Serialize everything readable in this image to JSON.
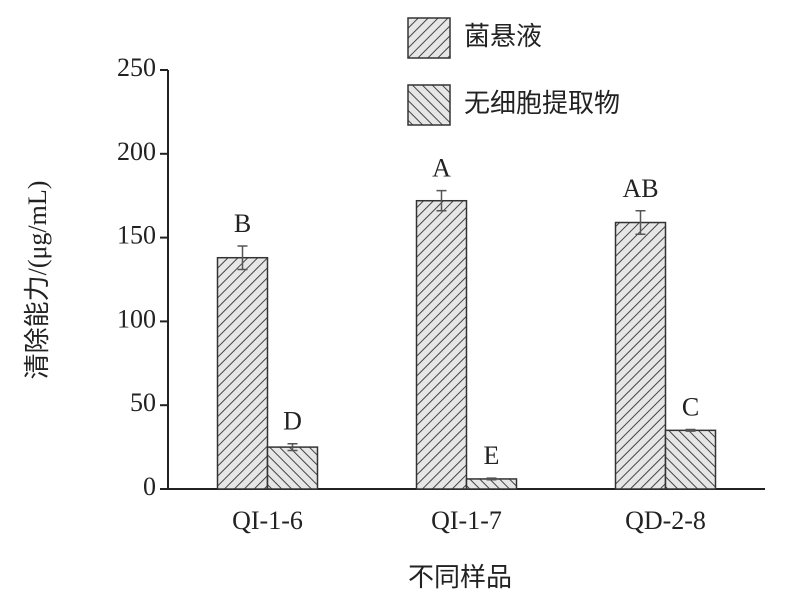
{
  "chart_data": {
    "type": "bar",
    "categories": [
      "QI-1-6",
      "QI-1-7",
      "QD-2-8"
    ],
    "series": [
      {
        "name": "菌悬液",
        "color": "#333333",
        "hatch": "/",
        "values": [
          138,
          172,
          159
        ],
        "errors": [
          7,
          6,
          7
        ],
        "letters": [
          "B",
          "A",
          "AB"
        ]
      },
      {
        "name": "无细胞提取物",
        "color": "#333333",
        "hatch": "\\",
        "values": [
          25,
          6,
          35
        ],
        "errors": [
          2,
          0.5,
          0.5
        ],
        "letters": [
          "D",
          "E",
          "C"
        ]
      }
    ],
    "x_label": "不同样品",
    "y_label": "清除能力/(μg/mL)",
    "ylim": [
      0,
      250
    ],
    "yticks": [
      0,
      50,
      100,
      150,
      200,
      250
    ]
  }
}
